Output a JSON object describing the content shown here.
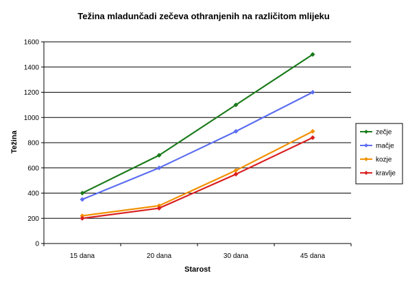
{
  "chart_data": {
    "type": "line",
    "title": "Težina mladunčadi zečeva othranjenih na različitom mlijeku",
    "xlabel": "Starost",
    "ylabel": "Težina",
    "categories": [
      "15 dana",
      "20 dana",
      "30 dana",
      "45 dana"
    ],
    "ylim": [
      0,
      1600
    ],
    "yticks": [
      0,
      200,
      400,
      600,
      800,
      1000,
      1200,
      1400,
      1600
    ],
    "grid": true,
    "legend": "right",
    "series": [
      {
        "name": "zečje",
        "color": "#1a7a1a",
        "values": [
          400,
          700,
          1100,
          1500
        ]
      },
      {
        "name": "mačje",
        "color": "#5c6ef0",
        "values": [
          350,
          600,
          890,
          1200
        ]
      },
      {
        "name": "kozje",
        "color": "#f29000",
        "values": [
          220,
          300,
          580,
          890
        ]
      },
      {
        "name": "kravlje",
        "color": "#d92020",
        "values": [
          200,
          280,
          550,
          840
        ]
      }
    ]
  }
}
